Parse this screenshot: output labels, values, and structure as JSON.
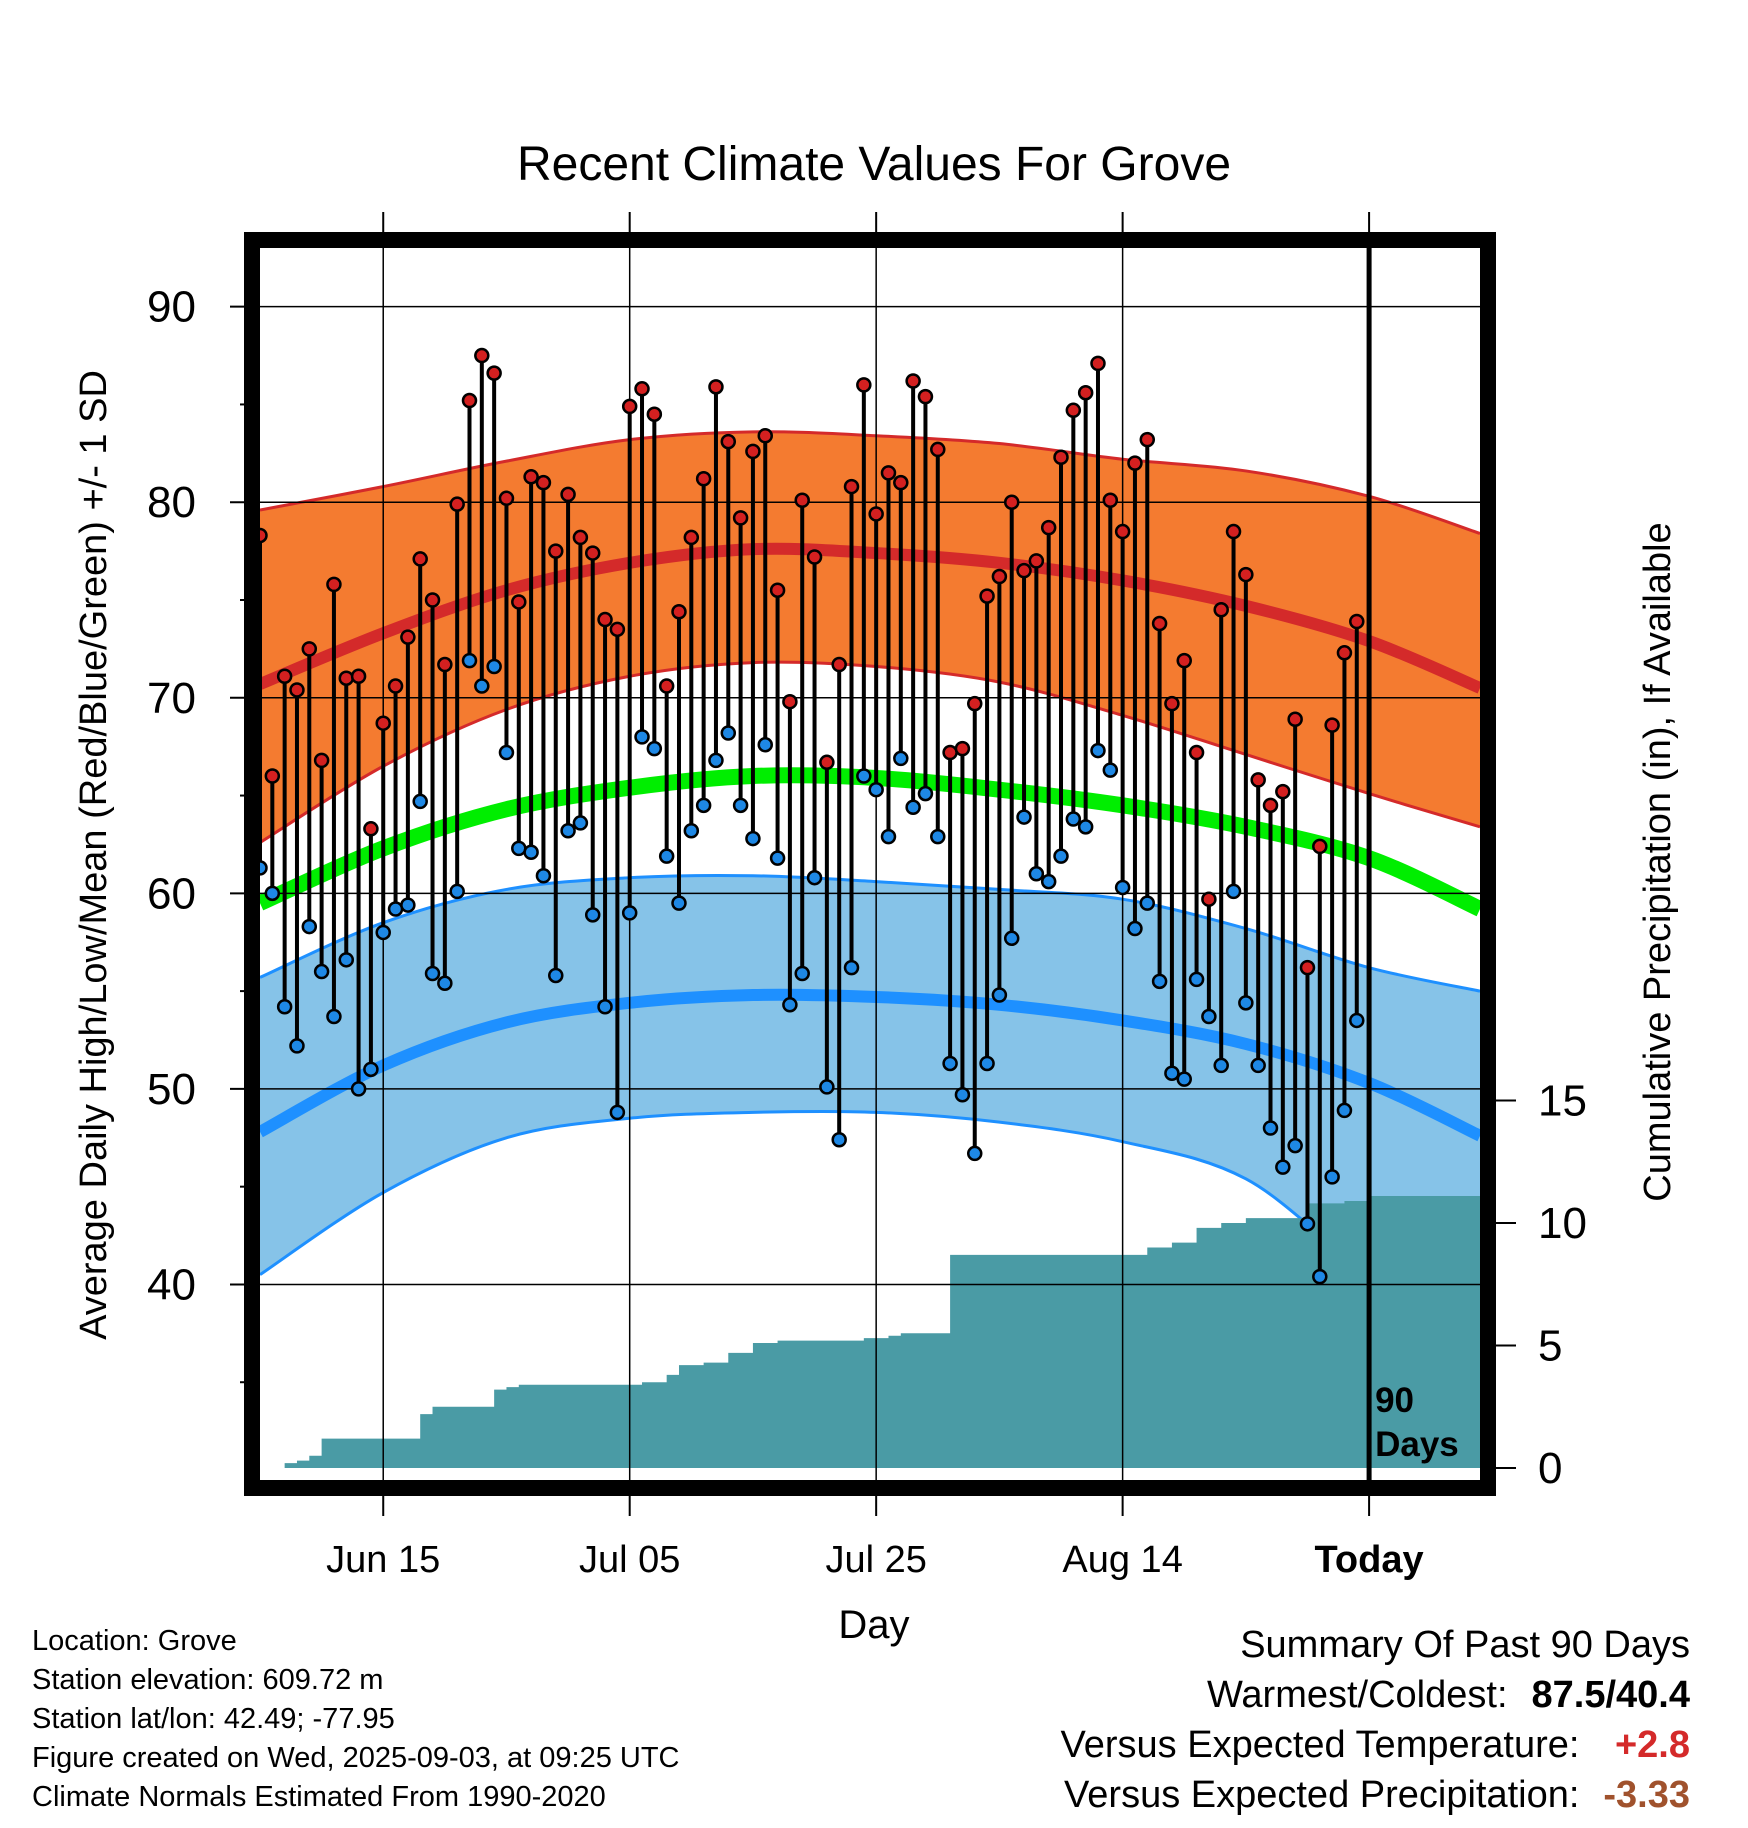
{
  "chart_data": {
    "type": "line",
    "title": "Recent Climate Values For Grove",
    "xlabel": "Day",
    "ylabel": "Average Daily High/Low/Mean (Red/Blue/Green) +/- 1 SD",
    "y2label": "Cumulative Precipitation (in), If Available",
    "ylim": [
      30,
      93
    ],
    "y2lim": [
      0,
      28
    ],
    "y2ticks": [
      0,
      5,
      10,
      15
    ],
    "yticks": [
      40,
      50,
      60,
      70,
      80,
      90
    ],
    "x_start": "2025-06-05",
    "x_end": "2025-09-12",
    "xticks": [
      {
        "date": "2025-06-15",
        "label": "Jun 15"
      },
      {
        "date": "2025-07-05",
        "label": "Jul 05"
      },
      {
        "date": "2025-07-25",
        "label": "Jul 25"
      },
      {
        "date": "2025-08-14",
        "label": "Aug 14"
      },
      {
        "date": "2025-09-03",
        "label": "Today"
      }
    ],
    "today": "2025-09-03",
    "today_label": [
      "90",
      "Days"
    ],
    "colors": {
      "high_band": "#f47b30",
      "high_mean": "#d42a2a",
      "low_band": "#86c3e8",
      "low_mean": "#1e90ff",
      "mean": "#00ee00",
      "precip": "#4a9ba5",
      "high_dot": "#d42020",
      "low_dot": "#1e88e5"
    },
    "normals": {
      "dates": [
        "2025-06-05",
        "2025-06-15",
        "2025-06-25",
        "2025-07-05",
        "2025-07-15",
        "2025-07-25",
        "2025-08-04",
        "2025-08-14",
        "2025-08-24",
        "2025-09-03",
        "2025-09-12"
      ],
      "high_mean": [
        70.7,
        73.3,
        75.5,
        76.9,
        77.6,
        77.4,
        76.9,
        76.0,
        74.7,
        72.9,
        70.5
      ],
      "high_upper": [
        79.6,
        80.8,
        82.1,
        83.2,
        83.6,
        83.4,
        83.0,
        82.2,
        81.6,
        80.3,
        78.4
      ],
      "high_lower": [
        62.6,
        66.5,
        69.4,
        71.1,
        71.8,
        71.6,
        70.8,
        69.1,
        67.1,
        65.1,
        63.4
      ],
      "mean": [
        59.5,
        62.3,
        64.3,
        65.4,
        66.0,
        65.9,
        65.3,
        64.5,
        63.4,
        61.8,
        59.2
      ],
      "low_mean": [
        47.8,
        51.2,
        53.4,
        54.4,
        54.8,
        54.7,
        54.3,
        53.5,
        52.3,
        50.3,
        47.6
      ],
      "low_upper": [
        55.7,
        58.5,
        60.2,
        60.8,
        60.9,
        60.6,
        60.2,
        59.7,
        58.2,
        56.2,
        55.0
      ],
      "low_lower": [
        40.5,
        44.7,
        47.5,
        48.5,
        48.8,
        48.8,
        48.3,
        47.3,
        45.4,
        40.6,
        38.0
      ]
    },
    "observed": {
      "start": "2025-06-05",
      "high": [
        78.3,
        66.0,
        71.1,
        70.4,
        72.5,
        66.8,
        75.8,
        71.0,
        71.1,
        63.3,
        68.7,
        70.6,
        73.1,
        77.1,
        75.0,
        71.7,
        79.9,
        85.2,
        87.5,
        86.6,
        80.2,
        74.9,
        81.3,
        81.0,
        77.5,
        80.4,
        78.2,
        77.4,
        74.0,
        73.5,
        84.9,
        85.8,
        84.5,
        70.6,
        74.4,
        78.2,
        81.2,
        85.9,
        83.1,
        79.2,
        82.6,
        83.4,
        75.5,
        69.8,
        80.1,
        77.2,
        66.7,
        71.7,
        80.8,
        86.0,
        79.4,
        81.5,
        81.0,
        86.2,
        85.4,
        82.7,
        67.2,
        67.4,
        69.7,
        75.2,
        76.2,
        80.0,
        76.5,
        77.0,
        78.7,
        82.3,
        84.7,
        85.6,
        87.1,
        80.1,
        78.5,
        82.0,
        83.2,
        73.8,
        69.7,
        71.9,
        67.2,
        59.7,
        74.5,
        78.5,
        76.3,
        65.8,
        64.5,
        65.2,
        68.9,
        56.2,
        62.4,
        68.6,
        72.3,
        73.9
      ],
      "low": [
        61.3,
        60.0,
        54.2,
        52.2,
        58.3,
        56.0,
        53.7,
        56.6,
        50.0,
        51.0,
        58.0,
        59.2,
        59.4,
        64.7,
        55.9,
        55.4,
        60.1,
        71.9,
        70.6,
        71.6,
        67.2,
        62.3,
        62.1,
        60.9,
        55.8,
        63.2,
        63.6,
        58.9,
        54.2,
        48.8,
        59.0,
        68.0,
        67.4,
        61.9,
        59.5,
        63.2,
        64.5,
        66.8,
        68.2,
        64.5,
        62.8,
        67.6,
        61.8,
        54.3,
        55.9,
        60.8,
        50.1,
        47.4,
        56.2,
        66.0,
        65.3,
        62.9,
        66.9,
        64.4,
        65.1,
        62.9,
        51.3,
        49.7,
        46.7,
        51.3,
        54.8,
        57.7,
        63.9,
        61.0,
        60.6,
        61.9,
        63.8,
        63.4,
        67.3,
        66.3,
        60.3,
        58.2,
        59.5,
        55.5,
        50.8,
        50.5,
        55.6,
        53.7,
        51.2,
        60.1,
        54.4,
        51.2,
        48.0,
        46.0,
        47.1,
        43.1,
        40.4,
        45.5,
        48.9,
        53.5
      ]
    },
    "precip": {
      "dates": [
        "2025-06-05",
        "2025-06-07",
        "2025-06-08",
        "2025-06-09",
        "2025-06-10",
        "2025-06-17",
        "2025-06-18",
        "2025-06-19",
        "2025-06-23",
        "2025-06-24",
        "2025-06-25",
        "2025-06-26",
        "2025-07-06",
        "2025-07-08",
        "2025-07-09",
        "2025-07-11",
        "2025-07-13",
        "2025-07-15",
        "2025-07-17",
        "2025-07-20",
        "2025-07-24",
        "2025-07-26",
        "2025-07-27",
        "2025-07-30",
        "2025-07-31",
        "2025-08-14",
        "2025-08-16",
        "2025-08-18",
        "2025-08-20",
        "2025-08-22",
        "2025-08-24",
        "2025-08-27",
        "2025-08-29",
        "2025-09-01",
        "2025-09-03",
        "2025-09-12"
      ],
      "values": [
        0.0,
        0.2,
        0.3,
        0.5,
        1.2,
        1.2,
        2.2,
        2.5,
        2.5,
        3.2,
        3.3,
        3.4,
        3.5,
        3.8,
        4.2,
        4.3,
        4.7,
        5.1,
        5.2,
        5.2,
        5.3,
        5.4,
        5.5,
        5.5,
        8.7,
        8.7,
        9.0,
        9.2,
        9.8,
        10.0,
        10.2,
        10.2,
        10.8,
        10.9,
        11.1,
        11.1
      ]
    }
  },
  "info": {
    "location": "Location: Grove",
    "elevation": "Station elevation: 609.72 m",
    "latlon": "Station lat/lon: 42.49; -77.95",
    "created": "Figure created on Wed, 2025-09-03, at 09:25 UTC",
    "normals": "Climate Normals Estimated From 1990-2020"
  },
  "summary": {
    "heading": "Summary Of Past 90 Days",
    "warm_label": "Warmest/Coldest:",
    "warm_value": "87.5/40.4",
    "temp_label": "Versus Expected Temperature:",
    "temp_value": "+2.8",
    "temp_color": "#d42a2a",
    "precip_label": "Versus Expected Precipitation:",
    "precip_value": "-3.33",
    "precip_color": "#a0522d"
  }
}
